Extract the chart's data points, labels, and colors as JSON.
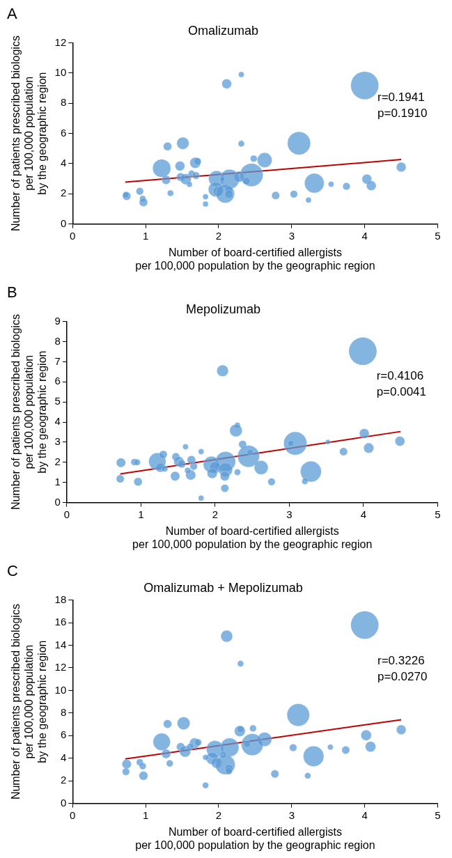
{
  "chart_data": [
    {
      "type": "bubble",
      "title": "Omalizumab",
      "xlabel": "Number of board-certified allergists\nper 100,000 population by the geographic region",
      "ylabel": "Number of patients prescribed biologics\nper 100,000 population\nby the geographic region",
      "xlim": [
        0,
        5
      ],
      "xticks": [
        0,
        1,
        2,
        3,
        4,
        5
      ],
      "ylim": [
        0,
        12
      ],
      "yticks": [
        0,
        2,
        4,
        6,
        8,
        10,
        12
      ],
      "grid": false,
      "legend": false,
      "annotations": [
        "A",
        "r=0.1941",
        "p=0.1910"
      ],
      "series": [
        {
          "type": "bubble",
          "color": "#5b9bd5",
          "x": [
            4.0,
            2.11,
            2.31,
            3.1,
            1.51,
            1.3,
            2.31,
            2.63,
            2.48,
            1.68,
            1.71,
            1.22,
            1.47,
            4.5,
            2.45,
            1.28,
            1.48,
            1.55,
            1.63,
            1.69,
            1.6,
            1.97,
            2.15,
            2.28,
            2.38,
            2.05,
            1.96,
            1.99,
            2.09,
            2.14,
            2.14,
            3.31,
            3.54,
            3.75,
            4.03,
            4.09,
            0.92,
            0.74,
            0.73,
            0.96,
            0.97,
            1.34,
            1.82,
            1.82,
            2.78,
            3.03,
            3.23
          ],
          "values": [
            9.18,
            9.29,
            9.9,
            5.35,
            5.35,
            5.14,
            5.32,
            4.23,
            4.33,
            4.05,
            4.15,
            3.69,
            3.84,
            3.77,
            3.25,
            2.92,
            3.11,
            2.97,
            3.33,
            3.21,
            2.62,
            3.0,
            2.97,
            3.13,
            2.85,
            2.97,
            2.29,
            2.17,
            2.01,
            2.26,
            1.96,
            2.7,
            2.64,
            2.5,
            2.97,
            2.54,
            2.17,
            1.85,
            1.93,
            1.68,
            1.43,
            2.04,
            1.81,
            1.32,
            1.89,
            1.98,
            1.58
          ],
          "sizes": [
            1,
            0.12,
            0.04,
            0.68,
            0.19,
            0.09,
            0.05,
            0.28,
            0.06,
            0.15,
            0.07,
            0.42,
            0.12,
            0.12,
            0.68,
            0.1,
            0.09,
            0.15,
            0.06,
            0.07,
            0.04,
            0.32,
            0.49,
            0.15,
            0.07,
            0.03,
            0.28,
            0.12,
            0.44,
            0.08,
            0.09,
            0.49,
            0.04,
            0.07,
            0.12,
            0.12,
            0.07,
            0.09,
            0.05,
            0.05,
            0.09,
            0.05,
            0.04,
            0.04,
            0.08,
            0.07,
            0.04
          ]
        },
        {
          "type": "line",
          "color": "#c00000",
          "x": [
            0.72,
            4.5
          ],
          "values": [
            2.77,
            4.27
          ]
        }
      ]
    },
    {
      "type": "bubble",
      "title": "Mepolizumab",
      "xlabel": "Number of board-certified allergists\nper 100,000 population by the geographic region",
      "ylabel": "Number of patients prescribed biologics\nper 100,000 population\nby the geographic region",
      "xlim": [
        0,
        5
      ],
      "xticks": [
        0,
        1,
        2,
        3,
        4,
        5
      ],
      "ylim": [
        0,
        9
      ],
      "yticks": [
        0,
        1,
        2,
        3,
        4,
        5,
        6,
        7,
        8,
        9
      ],
      "grid": false,
      "legend": false,
      "annotations": [
        "B",
        "r=0.4106",
        "p=0.0041"
      ],
      "series": [
        {
          "type": "bubble",
          "color": "#5b9bd5",
          "x": [
            3.99,
            2.1,
            2.3,
            2.28,
            3.08,
            3.02,
            4.01,
            3.52,
            4.49,
            4.07,
            3.73,
            2.37,
            2.45,
            2.47,
            2.62,
            3.29,
            3.21,
            2.76,
            2.3,
            2.14,
            1.95,
            2.0,
            2.14,
            1.96,
            2.13,
            2.13,
            1.81,
            1.81,
            1.6,
            1.68,
            1.71,
            1.67,
            1.63,
            1.46,
            1.47,
            1.51,
            1.55,
            1.22,
            1.3,
            1.26,
            1.32,
            0.73,
            0.72,
            0.91,
            0.95,
            0.96
          ],
          "values": [
            7.52,
            6.55,
            3.85,
            3.58,
            2.94,
            2.94,
            3.43,
            3.01,
            3.05,
            2.71,
            2.53,
            2.89,
            2.3,
            2.5,
            1.74,
            1.54,
            1.06,
            1.03,
            1.51,
            2.04,
            1.89,
            1.74,
            1.63,
            1.45,
            1.31,
            0.71,
            0.22,
            2.53,
            2.77,
            2.12,
            1.8,
            1.37,
            1.59,
            1.31,
            2.27,
            2.04,
            1.92,
            2.04,
            2.39,
            1.74,
            1.68,
            1.98,
            1.18,
            2.01,
            2.0,
            1.03
          ],
          "sizes": [
            1,
            0.17,
            0.04,
            0.2,
            0.69,
            0.05,
            0.12,
            0.03,
            0.12,
            0.13,
            0.08,
            0.08,
            0.61,
            0.05,
            0.25,
            0.56,
            0.05,
            0.07,
            0.05,
            0.51,
            0.34,
            0.17,
            0.25,
            0.13,
            0.11,
            0.08,
            0.04,
            0.04,
            0.04,
            0.09,
            0.07,
            0.13,
            0.05,
            0.11,
            0.08,
            0.13,
            0.08,
            0.38,
            0.08,
            0.11,
            0.05,
            0.11,
            0.08,
            0.06,
            0.05,
            0.09
          ]
        },
        {
          "type": "line",
          "color": "#c00000",
          "x": [
            0.72,
            4.5
          ],
          "values": [
            1.42,
            3.53
          ]
        }
      ]
    },
    {
      "type": "bubble",
      "title": "Omalizumab + Mepolizumab",
      "xlabel": "Number of board-certified allergists\nper 100,000 population by the geographic region",
      "ylabel": "Number of patients prescribed biologics\nper 100,000 population\nby the geographic region",
      "xlim": [
        0,
        5
      ],
      "xticks": [
        0,
        1,
        2,
        3,
        4,
        5
      ],
      "ylim": [
        0,
        18
      ],
      "yticks": [
        0,
        2,
        4,
        6,
        8,
        10,
        12,
        14,
        16,
        18
      ],
      "grid": false,
      "legend": false,
      "annotations": [
        "C",
        "r=0.3226",
        "p=0.0270"
      ],
      "series": [
        {
          "type": "bubble",
          "color": "#5b9bd5",
          "x": [
            4.0,
            2.11,
            2.3,
            3.09,
            1.3,
            1.52,
            2.29,
            2.3,
            2.47,
            4.5,
            4.02,
            4.08,
            2.63,
            2.46,
            2.39,
            3.02,
            3.53,
            3.74,
            3.3,
            3.22,
            2.77,
            1.22,
            1.28,
            1.33,
            1.48,
            1.54,
            1.67,
            1.72,
            1.61,
            1.95,
            2.15,
            1.91,
            1.97,
            1.82,
            2.09,
            2.14,
            2.14,
            1.82,
            0.74,
            0.73,
            0.92,
            0.96,
            0.97,
            2.06
          ],
          "values": [
            15.79,
            14.8,
            12.37,
            7.83,
            7.04,
            7.09,
            6.4,
            6.56,
            6.64,
            6.52,
            6.03,
            5.02,
            5.67,
            5.2,
            5.26,
            4.94,
            4.98,
            4.72,
            4.17,
            2.45,
            2.61,
            5.45,
            4.39,
            3.54,
            5.0,
            4.6,
            5.32,
            5.4,
            5.0,
            4.8,
            4.96,
            3.99,
            3.58,
            4.07,
            3.42,
            3.08,
            2.85,
            1.6,
            3.48,
            2.81,
            3.64,
            3.3,
            2.45,
            4.29
          ],
          "sizes": [
            1,
            0.18,
            0.05,
            0.65,
            0.09,
            0.21,
            0.15,
            0.06,
            0.06,
            0.12,
            0.14,
            0.14,
            0.26,
            0.61,
            0.06,
            0.07,
            0.04,
            0.08,
            0.54,
            0.05,
            0.08,
            0.38,
            0.11,
            0.06,
            0.09,
            0.16,
            0.14,
            0.06,
            0.06,
            0.38,
            0.44,
            0.19,
            0.14,
            0.04,
            0.5,
            0.09,
            0.06,
            0.05,
            0.11,
            0.07,
            0.06,
            0.06,
            0.1,
            0.06
          ]
        },
        {
          "type": "line",
          "color": "#c00000",
          "x": [
            0.72,
            4.5
          ],
          "values": [
            3.93,
            7.41
          ]
        }
      ]
    }
  ]
}
